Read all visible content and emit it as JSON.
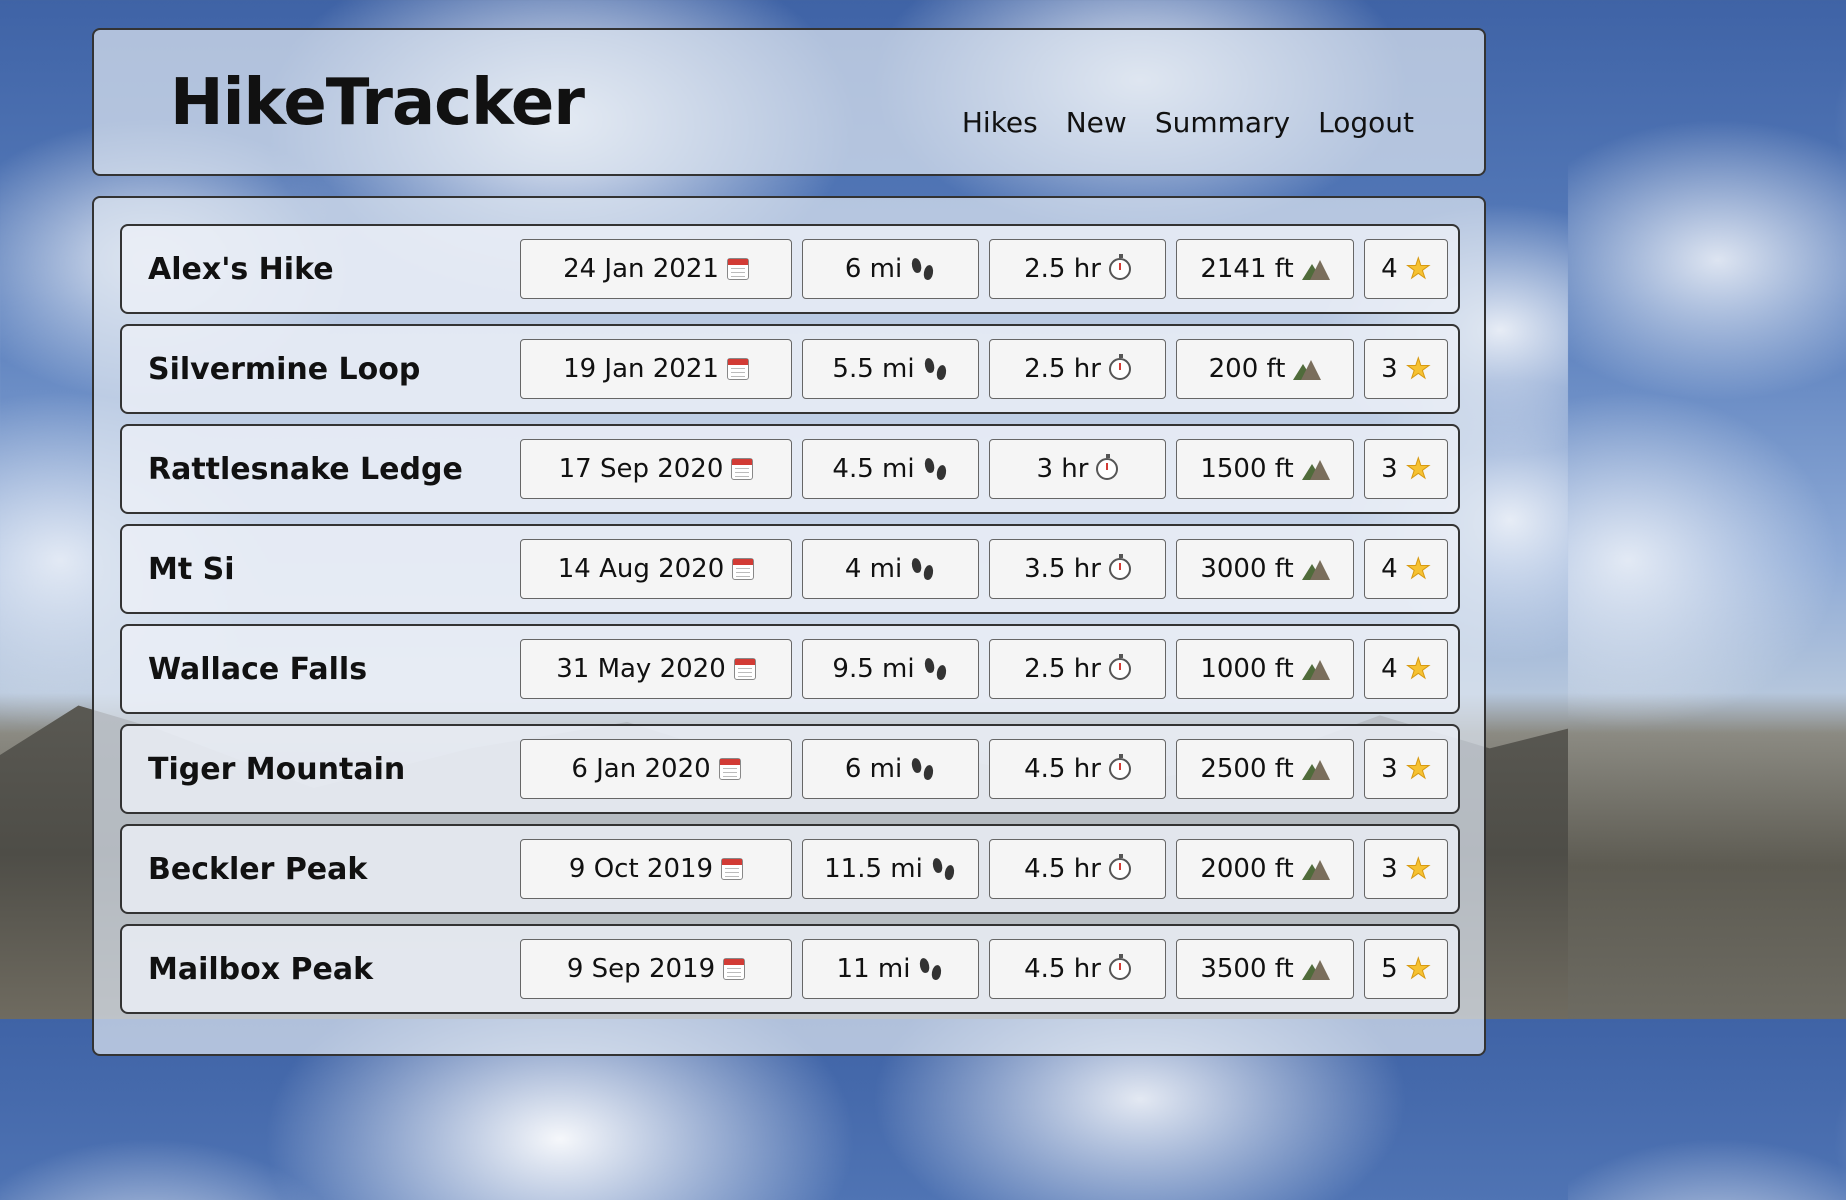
{
  "app": {
    "title": "HikeTracker"
  },
  "nav": {
    "items": [
      {
        "label": "Hikes"
      },
      {
        "label": "New"
      },
      {
        "label": "Summary"
      },
      {
        "label": "Logout"
      }
    ]
  },
  "icons": {
    "date": "calendar-icon",
    "distance": "footprints-icon",
    "duration": "stopwatch-icon",
    "elevation": "mountain-icon",
    "rating": "star-icon"
  },
  "hikes": [
    {
      "name": "Alex's Hike",
      "date": "24 Jan 2021",
      "distance": "6 mi",
      "duration": "2.5 hr",
      "elevation": "2141 ft",
      "rating": "4"
    },
    {
      "name": "Silvermine Loop",
      "date": "19 Jan 2021",
      "distance": "5.5 mi",
      "duration": "2.5 hr",
      "elevation": "200 ft",
      "rating": "3"
    },
    {
      "name": "Rattlesnake Ledge",
      "date": "17 Sep 2020",
      "distance": "4.5 mi",
      "duration": "3 hr",
      "elevation": "1500 ft",
      "rating": "3"
    },
    {
      "name": "Mt Si",
      "date": "14 Aug 2020",
      "distance": "4 mi",
      "duration": "3.5 hr",
      "elevation": "3000 ft",
      "rating": "4"
    },
    {
      "name": "Wallace Falls",
      "date": "31 May 2020",
      "distance": "9.5 mi",
      "duration": "2.5 hr",
      "elevation": "1000 ft",
      "rating": "4"
    },
    {
      "name": "Tiger Mountain",
      "date": "6 Jan 2020",
      "distance": "6 mi",
      "duration": "4.5 hr",
      "elevation": "2500 ft",
      "rating": "3"
    },
    {
      "name": "Beckler Peak",
      "date": "9 Oct 2019",
      "distance": "11.5 mi",
      "duration": "4.5 hr",
      "elevation": "2000 ft",
      "rating": "3"
    },
    {
      "name": "Mailbox Peak",
      "date": "9 Sep 2019",
      "distance": "11 mi",
      "duration": "4.5 hr",
      "elevation": "3500 ft",
      "rating": "5"
    }
  ]
}
